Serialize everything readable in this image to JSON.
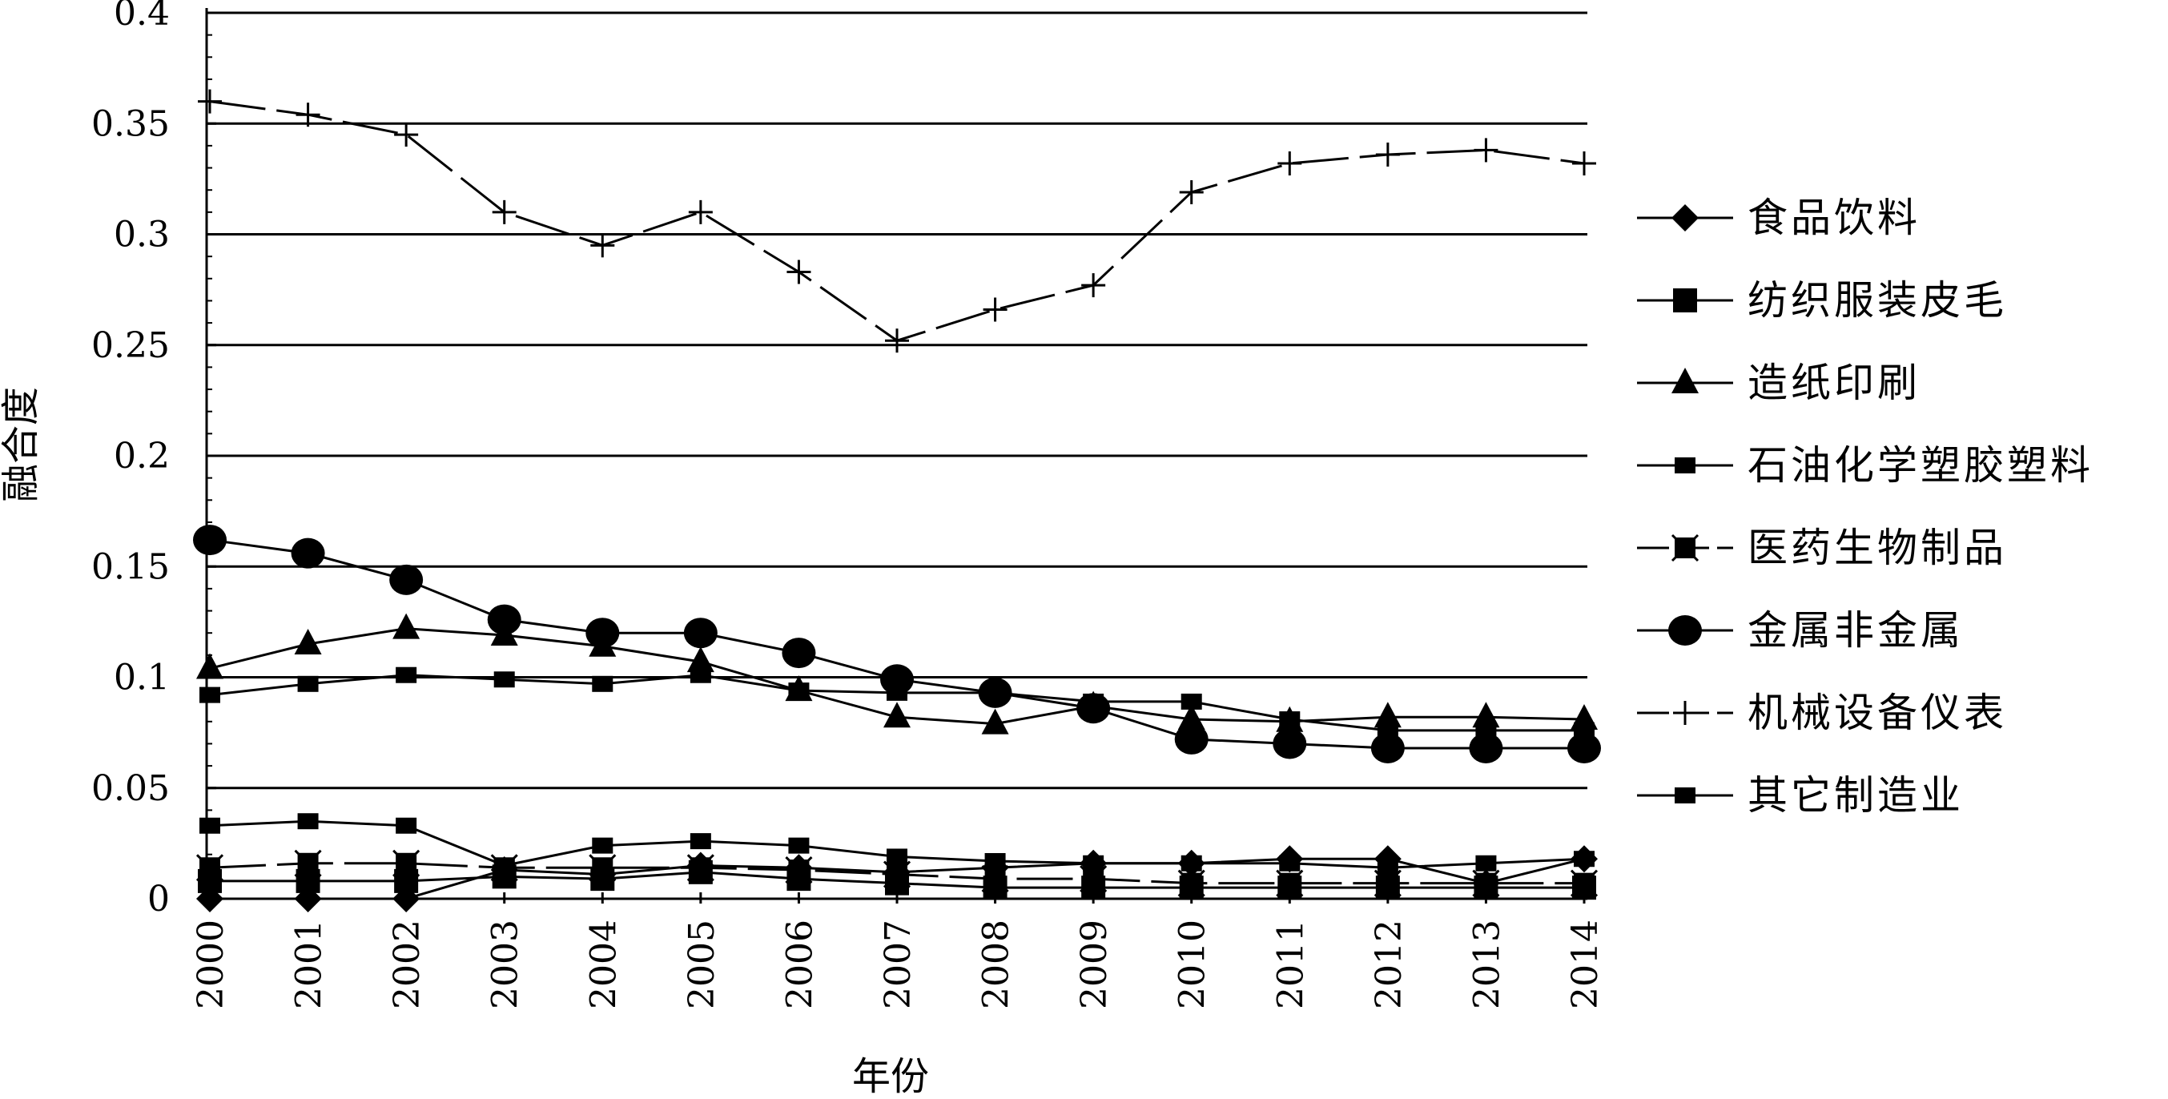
{
  "chart_data": {
    "type": "line",
    "x": [
      "2000",
      "2001",
      "2002",
      "2003",
      "2004",
      "2005",
      "2006",
      "2007",
      "2008",
      "2009",
      "2010",
      "2011",
      "2012",
      "2013",
      "2014"
    ],
    "xlabel": "年份",
    "ylabel": "融合度",
    "ylim": [
      0,
      0.4
    ],
    "yticks": [
      "0",
      "0.05",
      "0.1",
      "0.15",
      "0.2",
      "0.25",
      "0.3",
      "0.35",
      "0.4"
    ],
    "grid": "horizontal",
    "legend_position": "right",
    "series": [
      {
        "name": "食品饮料",
        "marker": "diamond",
        "dash": "solid",
        "values": [
          0.0,
          0.0,
          0.0,
          0.013,
          0.011,
          0.015,
          0.014,
          0.012,
          0.014,
          0.016,
          0.016,
          0.018,
          0.018,
          0.007,
          0.018
        ]
      },
      {
        "name": "纺织服装皮毛",
        "marker": "square",
        "dash": "solid",
        "values": [
          0.008,
          0.008,
          0.008,
          0.01,
          0.009,
          0.012,
          0.009,
          0.007,
          0.005,
          0.005,
          0.005,
          0.005,
          0.005,
          0.005,
          0.005
        ]
      },
      {
        "name": "造纸印刷",
        "marker": "triangle",
        "dash": "solid",
        "values": [
          0.104,
          0.115,
          0.122,
          0.119,
          0.114,
          0.107,
          0.094,
          0.082,
          0.079,
          0.087,
          0.081,
          0.08,
          0.082,
          0.082,
          0.081
        ]
      },
      {
        "name": "石油化学塑胶塑料",
        "marker": "smallsquare",
        "dash": "solid",
        "values": [
          0.092,
          0.097,
          0.101,
          0.099,
          0.097,
          0.101,
          0.094,
          0.093,
          0.093,
          0.089,
          0.089,
          0.081,
          0.076,
          0.076,
          0.076
        ]
      },
      {
        "name": "医药生物制品",
        "marker": "cross-square",
        "dash": "longdash",
        "values": [
          0.014,
          0.016,
          0.016,
          0.014,
          0.014,
          0.014,
          0.013,
          0.011,
          0.009,
          0.009,
          0.007,
          0.007,
          0.007,
          0.007,
          0.007
        ]
      },
      {
        "name": "金属非金属",
        "marker": "circle",
        "dash": "solid",
        "values": [
          0.162,
          0.156,
          0.144,
          0.126,
          0.12,
          0.12,
          0.111,
          0.099,
          0.093,
          0.086,
          0.072,
          0.07,
          0.068,
          0.068,
          0.068
        ]
      },
      {
        "name": "机械设备仪表",
        "marker": "plus",
        "dash": "longdash",
        "values": [
          0.36,
          0.354,
          0.345,
          0.31,
          0.295,
          0.31,
          0.283,
          0.252,
          0.266,
          0.277,
          0.319,
          0.332,
          0.336,
          0.338,
          0.332
        ]
      },
      {
        "name": "其它制造业",
        "marker": "smallsquare",
        "dash": "solid",
        "values": [
          0.033,
          0.035,
          0.033,
          0.015,
          0.024,
          0.026,
          0.024,
          0.019,
          0.017,
          0.016,
          0.016,
          0.016,
          0.014,
          0.016,
          0.018
        ]
      }
    ]
  }
}
